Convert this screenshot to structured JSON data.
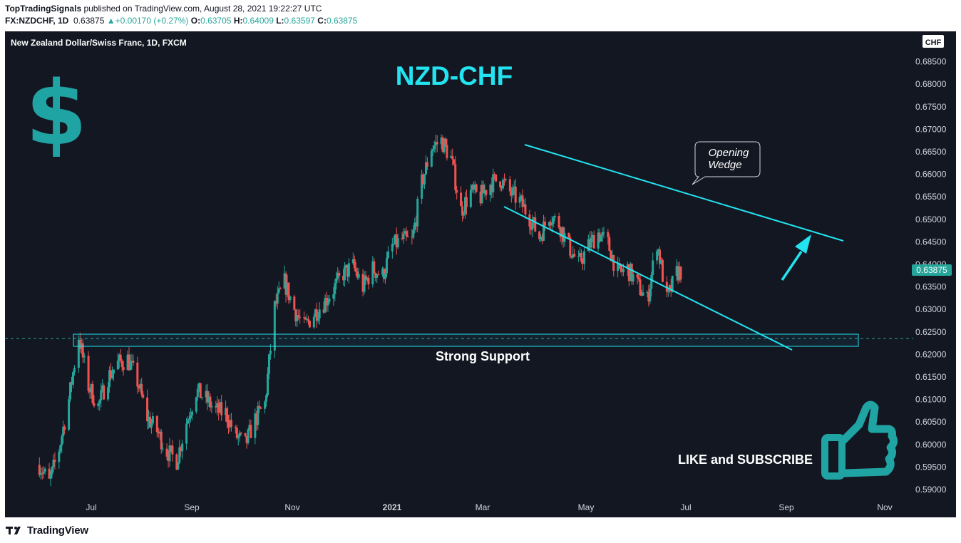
{
  "header": {
    "author": "TopTradingSignals",
    "published": " published on TradingView.com, August 28, 2021 19:22:27 UTC",
    "symbol": "FX:NZDCHF, 1D",
    "last": "0.63875",
    "change": "+0.00170 (+0.27%)",
    "open_label": "O:",
    "open": "0.63705",
    "high_label": "H:",
    "high": "0.64009",
    "low_label": "L:",
    "low": "0.63597",
    "close_label": "C:",
    "close": "0.63875"
  },
  "chart": {
    "instrument": "New Zealand Dollar/Swiss Franc, 1D, FXCM",
    "currency_badge": "CHF",
    "price_tag": "0.63875",
    "colors": {
      "bg": "#131722",
      "up": "#26a69a",
      "down": "#ef5350",
      "cyan": "#22e4f0",
      "accent": "#1fa3a3",
      "tag": "#26a69a"
    }
  },
  "annotations": {
    "pair_title": "NZD-CHF",
    "callout_line1": "Opening",
    "callout_line2": "Wedge",
    "support_label": "Strong Support",
    "cta": "LIKE and SUBSCRIBE",
    "dollar_glyph": "$",
    "dollar_icon": "dollar-sign-icon",
    "thumb_icon": "thumbs-up-icon"
  },
  "footer": {
    "brand": "TradingView",
    "brand_icon": "tradingview-logo-icon"
  },
  "chart_data": {
    "type": "candlestick",
    "y_axis_ticks": [
      0.59,
      0.595,
      0.6,
      0.605,
      0.61,
      0.615,
      0.62,
      0.625,
      0.63,
      0.635,
      0.64,
      0.645,
      0.65,
      0.655,
      0.66,
      0.665,
      0.67,
      0.675,
      0.68,
      0.685
    ],
    "y_tick_labels": [
      "0.59000",
      "0.59500",
      "0.60000",
      "0.60500",
      "0.61000",
      "0.61500",
      "0.62000",
      "0.62500",
      "0.63000",
      "0.63500",
      "0.64000",
      "0.64500",
      "0.65000",
      "0.65500",
      "0.66000",
      "0.66500",
      "0.67000",
      "0.67500",
      "0.68000",
      "0.68500"
    ],
    "x_tick_labels": [
      "Jul",
      "Sep",
      "Nov",
      "2021",
      "Mar",
      "May",
      "Jul",
      "Sep",
      "Nov"
    ],
    "last_price": 0.63875,
    "support_zone": [
      0.6217,
      0.6245
    ],
    "close_series": [
      [
        "2020-05-25",
        0.5955
      ],
      [
        "2020-06-01",
        0.5915
      ],
      [
        "2020-06-08",
        0.599
      ],
      [
        "2020-06-15",
        0.61
      ],
      [
        "2020-06-22",
        0.624
      ],
      [
        "2020-06-29",
        0.613
      ],
      [
        "2020-07-06",
        0.6085
      ],
      [
        "2020-07-13",
        0.615
      ],
      [
        "2020-07-20",
        0.618
      ],
      [
        "2020-07-27",
        0.619
      ],
      [
        "2020-08-03",
        0.614
      ],
      [
        "2020-08-10",
        0.606
      ],
      [
        "2020-08-17",
        0.603
      ],
      [
        "2020-08-24",
        0.5985
      ],
      [
        "2020-08-31",
        0.5965
      ],
      [
        "2020-09-07",
        0.605
      ],
      [
        "2020-09-14",
        0.612
      ],
      [
        "2020-09-21",
        0.61
      ],
      [
        "2020-09-28",
        0.6075
      ],
      [
        "2020-10-05",
        0.607
      ],
      [
        "2020-10-12",
        0.602
      ],
      [
        "2020-10-19",
        0.6
      ],
      [
        "2020-10-26",
        0.6055
      ],
      [
        "2020-11-02",
        0.609
      ],
      [
        "2020-11-09",
        0.6305
      ],
      [
        "2020-11-16",
        0.636
      ],
      [
        "2020-11-23",
        0.63
      ],
      [
        "2020-11-30",
        0.626
      ],
      [
        "2020-12-07",
        0.629
      ],
      [
        "2020-12-14",
        0.6315
      ],
      [
        "2020-12-21",
        0.6345
      ],
      [
        "2020-12-28",
        0.638
      ],
      [
        "2021-01-04",
        0.6395
      ],
      [
        "2021-01-11",
        0.635
      ],
      [
        "2021-01-18",
        0.639
      ],
      [
        "2021-01-25",
        0.6375
      ],
      [
        "2021-02-01",
        0.644
      ],
      [
        "2021-02-08",
        0.6455
      ],
      [
        "2021-02-15",
        0.645
      ],
      [
        "2021-02-22",
        0.658
      ],
      [
        "2021-03-01",
        0.666
      ],
      [
        "2021-03-08",
        0.6675
      ],
      [
        "2021-03-15",
        0.6635
      ],
      [
        "2021-03-22",
        0.652
      ],
      [
        "2021-03-29",
        0.656
      ],
      [
        "2021-04-05",
        0.655
      ],
      [
        "2021-04-12",
        0.658
      ],
      [
        "2021-04-19",
        0.659
      ],
      [
        "2021-04-26",
        0.656
      ],
      [
        "2021-05-03",
        0.654
      ],
      [
        "2021-05-10",
        0.6505
      ],
      [
        "2021-05-17",
        0.646
      ],
      [
        "2021-05-24",
        0.651
      ],
      [
        "2021-05-31",
        0.649
      ],
      [
        "2021-06-07",
        0.644
      ],
      [
        "2021-06-14",
        0.64
      ],
      [
        "2021-06-21",
        0.644
      ],
      [
        "2021-06-28",
        0.647
      ],
      [
        "2021-07-05",
        0.6445
      ],
      [
        "2021-07-12",
        0.638
      ],
      [
        "2021-07-19",
        0.639
      ],
      [
        "2021-07-26",
        0.6355
      ],
      [
        "2021-08-02",
        0.632
      ],
      [
        "2021-08-09",
        0.645
      ],
      [
        "2021-08-16",
        0.632
      ],
      [
        "2021-08-23",
        0.638
      ],
      [
        "2021-08-27",
        0.63875
      ]
    ]
  }
}
